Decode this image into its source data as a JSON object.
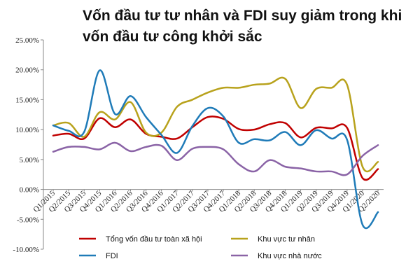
{
  "chart_data": {
    "type": "line",
    "title_lines": [
      "Vốn đầu tư tư nhân và FDI suy giảm trong khi",
      "vốn đầu tư công khởi sắc"
    ],
    "xlabel": "",
    "ylabel": "",
    "ylim": [
      -10,
      25
    ],
    "y_ticks": [
      25,
      20,
      15,
      10,
      5,
      0,
      -5,
      -10
    ],
    "y_tick_labels": [
      "25.00%",
      "20.00%",
      "15.00%",
      "10.00%",
      "5.00%",
      "0.00%",
      "-5.00%",
      "-10.00%"
    ],
    "grid": false,
    "legend_position": "bottom",
    "x": [
      "Q1/2015",
      "Q2/2015",
      "Q3/2015",
      "Q4/2015",
      "Q1/2016",
      "Q2/2016",
      "Q3/2016",
      "Q4/2016",
      "Q1/2017",
      "Q2/2017",
      "Q3/2017",
      "Q4/2017",
      "Q1/2018",
      "Q2/2018",
      "Q3/2018",
      "Q4/2018",
      "Q1/2019",
      "Q2/2019",
      "Q3/2019",
      "Q4/2019",
      "Q1/2020",
      "Q2/2020"
    ],
    "series": [
      {
        "name": "Tổng vốn đầu tư toàn xã hội",
        "color": "#c00000",
        "values": [
          9.0,
          9.3,
          8.5,
          11.9,
          10.4,
          11.7,
          9.3,
          8.8,
          8.5,
          10.4,
          12.1,
          11.8,
          10.1,
          10.0,
          10.9,
          11.1,
          8.7,
          10.3,
          10.2,
          10.3,
          1.9,
          3.4
        ]
      },
      {
        "name": "Khu vực tư nhân",
        "color": "#b8a21c",
        "values": [
          10.7,
          11.1,
          8.8,
          12.9,
          11.7,
          14.6,
          9.5,
          9.5,
          13.8,
          15.0,
          16.2,
          17.0,
          17.0,
          17.5,
          17.7,
          18.5,
          13.6,
          16.8,
          17.0,
          17.5,
          3.8,
          4.6
        ]
      },
      {
        "name": "FDI",
        "color": "#1f7bb8",
        "values": [
          10.7,
          9.8,
          9.6,
          19.9,
          12.6,
          15.6,
          12.1,
          9.1,
          6.1,
          10.6,
          13.6,
          12.2,
          7.8,
          8.4,
          8.2,
          9.6,
          7.4,
          9.9,
          8.5,
          8.3,
          -5.9,
          -3.8
        ]
      },
      {
        "name": "Khu vực nhà nước",
        "color": "#8a63a6",
        "values": [
          6.3,
          7.1,
          7.1,
          6.7,
          7.8,
          6.4,
          7.1,
          7.3,
          4.9,
          6.8,
          7.1,
          6.7,
          4.2,
          3.0,
          4.9,
          3.8,
          3.5,
          3.0,
          3.0,
          2.5,
          5.6,
          7.4
        ]
      }
    ]
  }
}
